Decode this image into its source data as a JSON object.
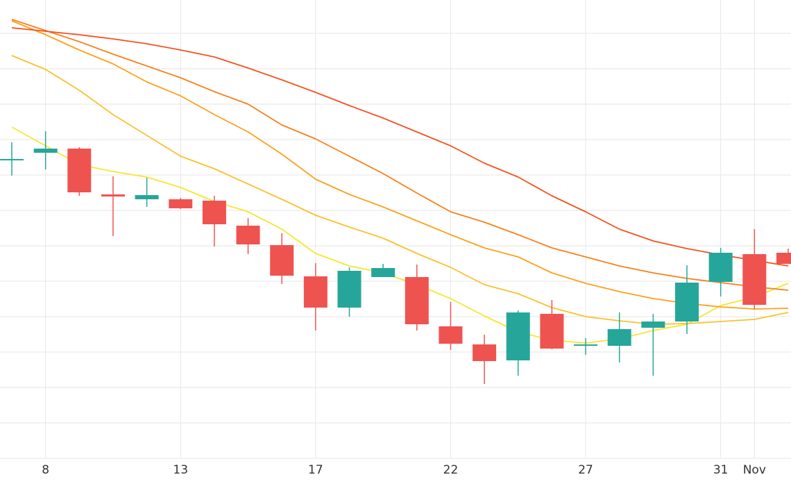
{
  "chart_data": {
    "type": "candlestick",
    "categories": [
      null,
      "8",
      null,
      null,
      null,
      "13",
      null,
      null,
      null,
      "17",
      null,
      null,
      null,
      "22",
      null,
      null,
      null,
      "27",
      null,
      null,
      null,
      "31",
      "Nov",
      null
    ],
    "open": [
      431,
      440,
      446,
      380,
      373,
      373,
      371,
      335,
      307,
      262,
      217,
      261,
      261,
      190,
      164,
      141,
      208,
      162,
      162,
      188,
      197,
      254,
      294,
      296
    ],
    "high": [
      455,
      471,
      448,
      406,
      404,
      375,
      378,
      346,
      324,
      281,
      275,
      280,
      279,
      225,
      178,
      213,
      228,
      173,
      210,
      208,
      278,
      303,
      330,
      302
    ],
    "low": [
      407,
      416,
      378,
      320,
      362,
      359,
      305,
      294,
      251,
      184,
      204,
      261,
      184,
      156,
      107,
      119,
      157,
      149,
      138,
      119,
      179,
      233,
      215,
      280
    ],
    "close": [
      431,
      446,
      383,
      377,
      379,
      360,
      337,
      308,
      263,
      217,
      270,
      274,
      193,
      165,
      140,
      210,
      158,
      164,
      186,
      197,
      253,
      296,
      221,
      280
    ],
    "up_color": "#26a69a",
    "down_color": "#ef5350",
    "lines": [
      {
        "color": "#f7e62b",
        "values": [
          477,
          450,
          423,
          413,
          405,
          390,
          370,
          355,
          330,
          295,
          277,
          267,
          250,
          230,
          205,
          182,
          170,
          166,
          172,
          184,
          193,
          220,
          232,
          252
        ]
      },
      {
        "color": "#fbc02d",
        "values": [
          580,
          560,
          530,
          495,
          465,
          435,
          417,
          395,
          373,
          350,
          333,
          317,
          295,
          275,
          250,
          237,
          217,
          204,
          198,
          193,
          194,
          197,
          200,
          210
        ]
      },
      {
        "color": "#ff9f1a",
        "values": [
          630,
          610,
          588,
          568,
          542,
          522,
          495,
          470,
          438,
          402,
          380,
          362,
          342,
          322,
          303,
          290,
          267,
          252,
          240,
          230,
          223,
          218,
          215,
          216
        ]
      },
      {
        "color": "#f8801a",
        "values": [
          632,
          616,
          600,
          582,
          565,
          548,
          528,
          510,
          480,
          460,
          435,
          410,
          382,
          355,
          340,
          322,
          303,
          290,
          277,
          267,
          259,
          253,
          247,
          242
        ]
      },
      {
        "color": "#f4511e",
        "values": [
          620,
          615,
          610,
          604,
          597,
          588,
          578,
          562,
          545,
          527,
          508,
          490,
          470,
          450,
          425,
          405,
          378,
          355,
          330,
          313,
          302,
          293,
          285,
          277
        ]
      }
    ],
    "ylim": [
      0,
      660
    ],
    "yticks": [
      0,
      51,
      102,
      153,
      204,
      255,
      306,
      357,
      408,
      459,
      510,
      561,
      612
    ],
    "ytick_labels": false,
    "grid": true
  }
}
